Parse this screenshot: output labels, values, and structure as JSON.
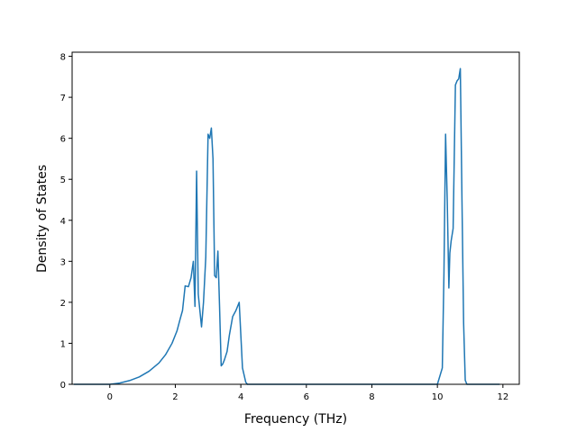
{
  "chart_data": {
    "type": "line",
    "title": "",
    "xlabel": "Frequency (THz)",
    "ylabel": "Density of States",
    "xlim": [
      -1.15,
      12.5
    ],
    "ylim": [
      0,
      8.1
    ],
    "xticks": [
      0,
      2,
      4,
      6,
      8,
      10,
      12
    ],
    "yticks": [
      0,
      1,
      2,
      3,
      4,
      5,
      6,
      7,
      8
    ],
    "grid": false,
    "series": [
      {
        "name": "",
        "color": "#1f77b4",
        "x": [
          -1.1,
          -0.5,
          0.0,
          0.3,
          0.6,
          0.9,
          1.2,
          1.5,
          1.7,
          1.9,
          2.05,
          2.15,
          2.22,
          2.3,
          2.4,
          2.48,
          2.55,
          2.6,
          2.65,
          2.7,
          2.75,
          2.8,
          2.86,
          2.93,
          3.0,
          3.05,
          3.1,
          3.15,
          3.2,
          3.25,
          3.3,
          3.35,
          3.4,
          3.45,
          3.5,
          3.58,
          3.65,
          3.75,
          3.85,
          3.95,
          4.05,
          4.15,
          4.2,
          4.25,
          4.3,
          5.0,
          6.0,
          7.0,
          8.0,
          9.0,
          10.0,
          10.15,
          10.2,
          10.25,
          10.3,
          10.35,
          10.38,
          10.42,
          10.48,
          10.55,
          10.6,
          10.65,
          10.7,
          10.75,
          10.8,
          10.85,
          10.9,
          11.5,
          11.9
        ],
        "y": [
          0,
          0,
          0,
          0.03,
          0.09,
          0.18,
          0.32,
          0.52,
          0.72,
          1.0,
          1.3,
          1.6,
          1.8,
          2.4,
          2.38,
          2.6,
          3.0,
          1.9,
          5.2,
          2.2,
          1.8,
          1.4,
          2.0,
          3.1,
          6.1,
          6.0,
          6.25,
          5.5,
          2.65,
          2.6,
          3.25,
          1.9,
          0.45,
          0.5,
          0.6,
          0.8,
          1.2,
          1.65,
          1.8,
          2.0,
          0.4,
          0.05,
          0,
          0,
          0,
          0,
          0,
          0,
          0,
          0,
          0,
          0.4,
          2.7,
          6.1,
          4.5,
          2.35,
          3.2,
          3.5,
          3.8,
          7.3,
          7.4,
          7.45,
          7.7,
          4.5,
          1.5,
          0.1,
          0,
          0,
          0
        ]
      }
    ]
  }
}
